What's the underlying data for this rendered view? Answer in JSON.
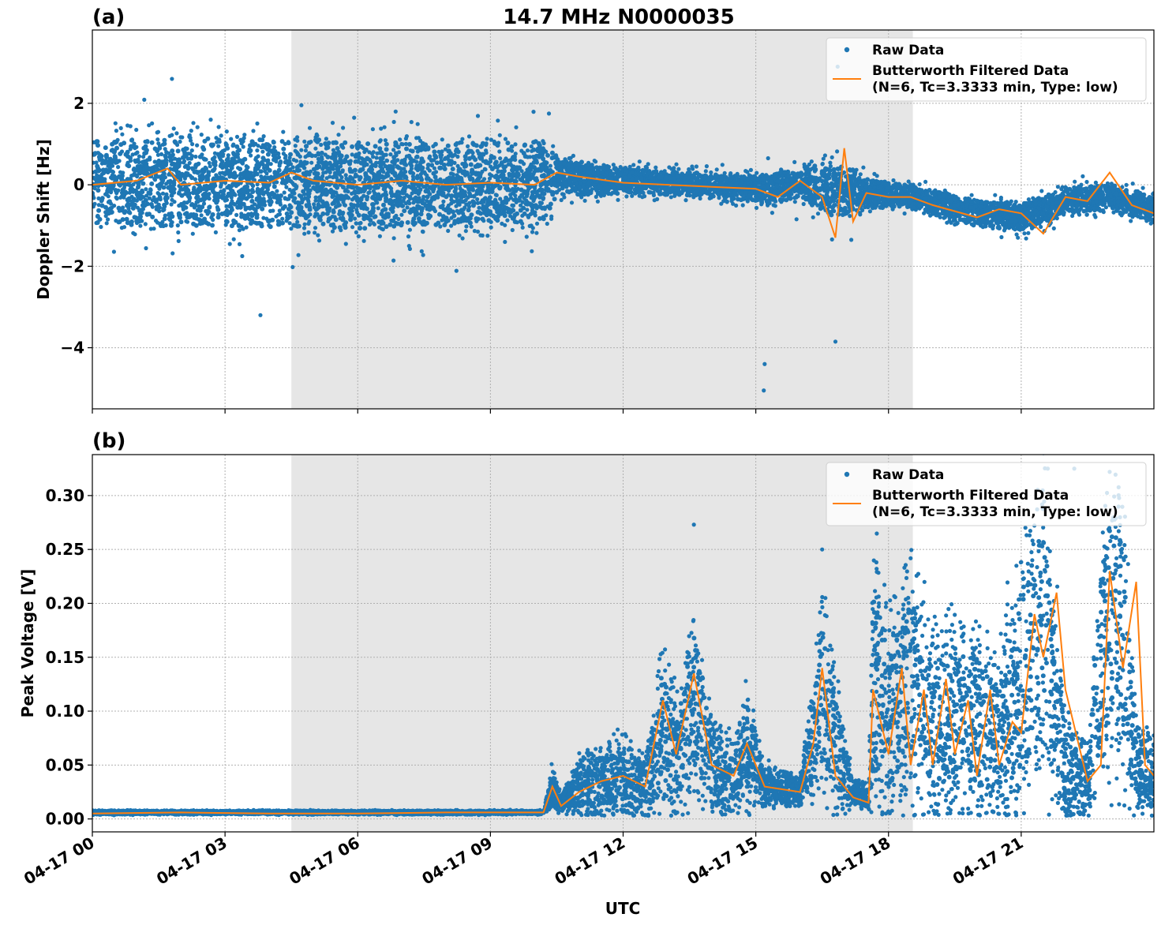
{
  "chart_data": {
    "type": "scatter",
    "title": "14.7 MHz N0000035",
    "xlabel": "UTC",
    "x_range_hours": [
      0,
      24
    ],
    "x_tick_hours": [
      0,
      3,
      6,
      9,
      12,
      15,
      18,
      21
    ],
    "x_tick_labels": [
      "04-17 00",
      "04-17 03",
      "04-17 06",
      "04-17 09",
      "04-17 12",
      "04-17 15",
      "04-17 18",
      "04-17 21"
    ],
    "shaded_interval_hours": [
      4.5,
      18.55
    ],
    "grid": true,
    "legend_placement": "upper-right",
    "legend": {
      "raw": "Raw Data",
      "filtered_line1": "Butterworth Filtered Data",
      "filtered_line2": "(N=6, Tc=3.3333 min, Type: low)"
    },
    "colors": {
      "raw": "#1f77b4",
      "filtered": "#ff7f0e",
      "shade": "#e6e6e6"
    },
    "panels": [
      {
        "label": "(a)",
        "ylabel": "Doppler Shift [Hz]",
        "ylim": [
          -5.5,
          3.8
        ],
        "yticks": [
          -4,
          -2,
          0,
          2
        ],
        "ytick_labels": [
          "−4",
          "−2",
          "0",
          "2"
        ],
        "series": [
          {
            "name": "Raw Data",
            "profile_hours": [
              0,
              2,
              4,
              6,
              8,
              10.2,
              10.5,
              12,
              14,
              15,
              16,
              16.8,
              17.5,
              18.5,
              20,
              21,
              22,
              23,
              24
            ],
            "center": [
              0,
              0.05,
              0.05,
              0,
              0,
              0.1,
              0.2,
              0.1,
              0,
              -0.1,
              0,
              -0.1,
              -0.2,
              -0.3,
              -0.7,
              -0.8,
              -0.4,
              -0.3,
              -0.6
            ],
            "spread": [
              1.2,
              1.2,
              1.2,
              1.2,
              1.1,
              1.1,
              0.5,
              0.35,
              0.3,
              0.4,
              0.4,
              0.8,
              0.4,
              0.3,
              0.35,
              0.35,
              0.35,
              0.35,
              0.35
            ],
            "extremes": [
              [
                15.18,
                -5.05
              ],
              [
                15.2,
                -4.4
              ],
              [
                16.85,
                2.9
              ],
              [
                16.8,
                -3.85
              ],
              [
                3.8,
                -3.2
              ],
              [
                1.8,
                2.6
              ]
            ]
          },
          {
            "name": "Butterworth Filtered Data",
            "x": [
              0,
              1,
              1.7,
              2,
              3,
              4,
              4.5,
              5,
              6,
              7,
              8,
              9,
              10,
              10.5,
              11,
              12,
              13,
              14,
              15,
              15.5,
              16,
              16.5,
              16.8,
              17,
              17.2,
              17.5,
              18,
              18.5,
              19,
              20,
              20.5,
              21,
              21.5,
              22,
              22.5,
              23,
              23.5,
              24
            ],
            "y": [
              0,
              0.1,
              0.4,
              0,
              0.1,
              0.05,
              0.3,
              0.1,
              0,
              0.1,
              0,
              0.05,
              0,
              0.3,
              0.2,
              0.05,
              0,
              -0.05,
              -0.1,
              -0.3,
              0.1,
              -0.3,
              -1.3,
              0.9,
              -0.9,
              -0.2,
              -0.3,
              -0.3,
              -0.5,
              -0.8,
              -0.6,
              -0.7,
              -1.2,
              -0.3,
              -0.4,
              0.3,
              -0.5,
              -0.7
            ]
          }
        ]
      },
      {
        "label": "(b)",
        "ylabel": "Peak Voltage [V]",
        "ylim": [
          -0.012,
          0.338
        ],
        "yticks": [
          0,
          0.05,
          0.1,
          0.15,
          0.2,
          0.25,
          0.3
        ],
        "ytick_labels": [
          "0.00",
          "0.05",
          "0.10",
          "0.15",
          "0.20",
          "0.25",
          "0.30"
        ],
        "series": [
          {
            "name": "Raw Data",
            "profile_hours": [
              0,
              10.2,
              10.4,
              10.6,
              11,
              11.5,
              12,
              12.5,
              12.9,
              13.2,
              13.6,
              14,
              14.5,
              14.8,
              15.2,
              16,
              16.3,
              16.5,
              16.8,
              17.2,
              17.55,
              17.65,
              18,
              18.5,
              19,
              19.5,
              20,
              20.5,
              21,
              21.5,
              22,
              22.5,
              22.9,
              23.3,
              23.6,
              24
            ],
            "center": [
              0.006,
              0.006,
              0.03,
              0.015,
              0.03,
              0.035,
              0.04,
              0.03,
              0.09,
              0.06,
              0.11,
              0.05,
              0.035,
              0.07,
              0.03,
              0.025,
              0.07,
              0.12,
              0.07,
              0.025,
              0.02,
              0.13,
              0.09,
              0.13,
              0.08,
              0.1,
              0.09,
              0.07,
              0.13,
              0.18,
              0.05,
              0.03,
              0.18,
              0.17,
              0.05,
              0.04
            ],
            "spread": [
              0.002,
              0.002,
              0.02,
              0.01,
              0.03,
              0.035,
              0.04,
              0.03,
              0.09,
              0.06,
              0.1,
              0.05,
              0.035,
              0.06,
              0.02,
              0.015,
              0.06,
              0.1,
              0.07,
              0.015,
              0.01,
              0.15,
              0.1,
              0.12,
              0.1,
              0.1,
              0.1,
              0.08,
              0.14,
              0.15,
              0.06,
              0.04,
              0.15,
              0.15,
              0.05,
              0.04
            ],
            "extremes": [
              [
                13.6,
                0.273
              ],
              [
                16.5,
                0.25
              ],
              [
                21.6,
                0.325
              ],
              [
                22.2,
                0.325
              ],
              [
                23.0,
                0.322
              ]
            ]
          },
          {
            "name": "Butterworth Filtered Data",
            "x": [
              0,
              2,
              4,
              6,
              8,
              10.2,
              10.4,
              10.6,
              11,
              11.5,
              12,
              12.5,
              12.9,
              13.2,
              13.6,
              14,
              14.5,
              14.8,
              15.2,
              16,
              16.3,
              16.5,
              16.8,
              17.2,
              17.55,
              17.65,
              18,
              18.3,
              18.5,
              18.8,
              19,
              19.3,
              19.5,
              19.8,
              20,
              20.3,
              20.5,
              20.8,
              21,
              21.3,
              21.5,
              21.8,
              22,
              22.5,
              22.8,
              23,
              23.3,
              23.6,
              23.8,
              24
            ],
            "y": [
              0.005,
              0.006,
              0.005,
              0.005,
              0.006,
              0.006,
              0.03,
              0.012,
              0.025,
              0.035,
              0.04,
              0.03,
              0.11,
              0.06,
              0.135,
              0.05,
              0.04,
              0.07,
              0.03,
              0.025,
              0.07,
              0.14,
              0.04,
              0.02,
              0.015,
              0.12,
              0.06,
              0.14,
              0.05,
              0.12,
              0.05,
              0.13,
              0.06,
              0.11,
              0.04,
              0.12,
              0.05,
              0.09,
              0.08,
              0.19,
              0.15,
              0.21,
              0.12,
              0.035,
              0.05,
              0.23,
              0.14,
              0.22,
              0.05,
              0.04
            ]
          }
        ]
      }
    ]
  }
}
